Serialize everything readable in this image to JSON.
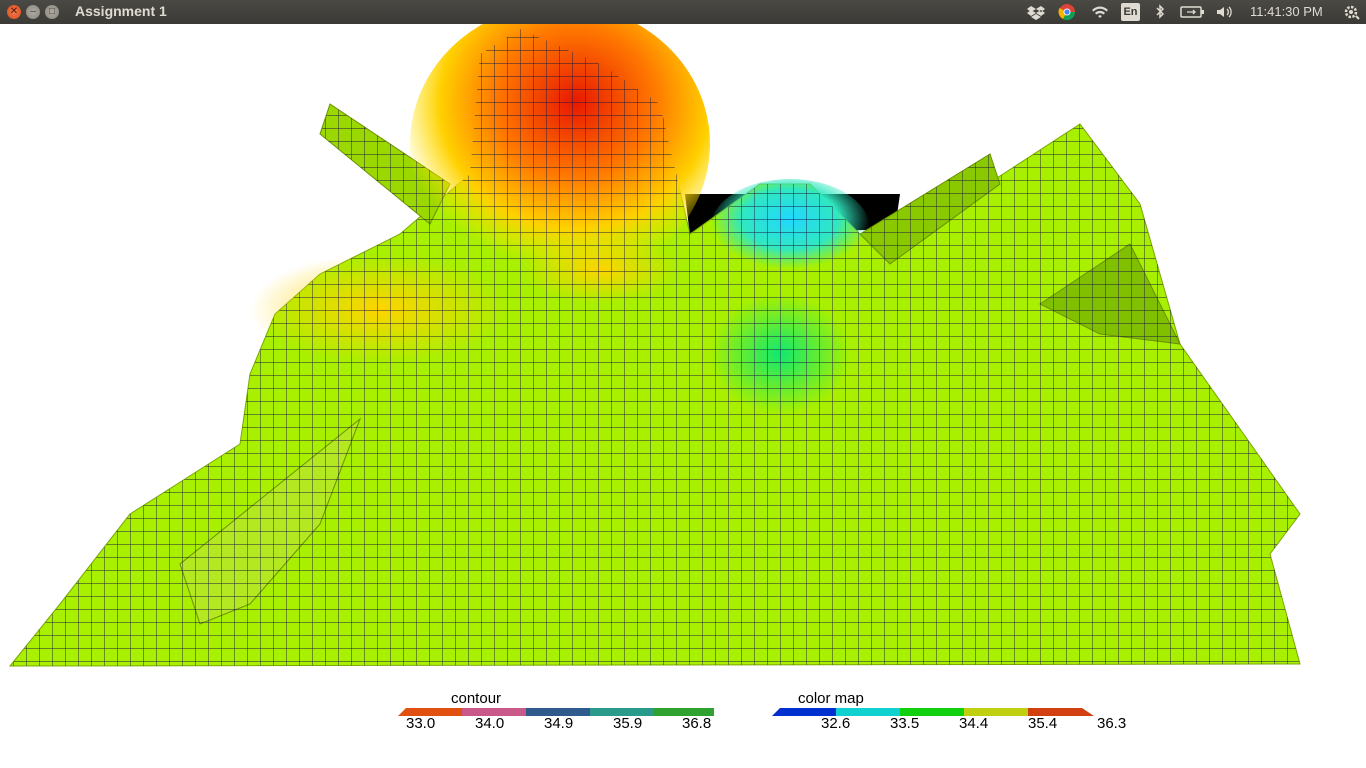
{
  "window": {
    "title": "Assignment 1"
  },
  "tray": {
    "language": "En",
    "clock": "11:41:30 PM",
    "icons": [
      "dropbox-icon",
      "chrome-icon",
      "wifi-icon",
      "bluetooth-icon",
      "battery-icon",
      "volume-icon",
      "settings-gear-icon"
    ]
  },
  "scene": {
    "description_colors": {
      "base": "#a8f000",
      "peak": "#e81800",
      "warm": "#ffe000",
      "cool": "#20e8ff",
      "background": "#000000"
    }
  },
  "legends": {
    "contour": {
      "title": "contour",
      "ticks": [
        "33.0",
        "34.0",
        "34.9",
        "35.9",
        "36.8"
      ],
      "colors": [
        "#e05010",
        "#c85a8a",
        "#2e5a8c",
        "#2a9a8a",
        "#30a030"
      ]
    },
    "colormap": {
      "title": "color map",
      "ticks": [
        "32.6",
        "33.5",
        "34.4",
        "35.4",
        "36.3"
      ],
      "colors": [
        "#0030d0",
        "#10d0d0",
        "#10d010",
        "#c0d010",
        "#d04010"
      ]
    }
  }
}
